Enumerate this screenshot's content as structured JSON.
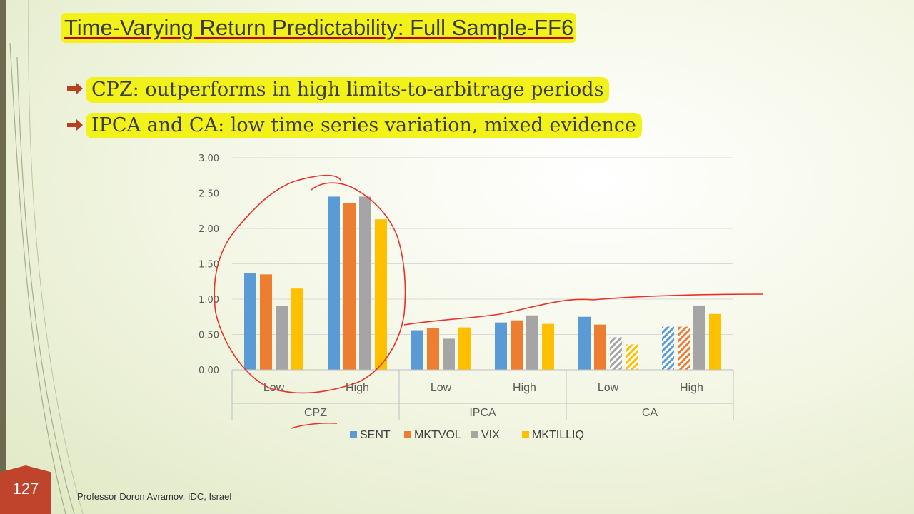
{
  "slide": {
    "title": "Time-Varying Return Predictability: Full Sample-FF6",
    "bullets": [
      "CPZ: outperforms in high limits-to-arbitrage periods",
      "IPCA and CA: low time series variation, mixed evidence"
    ],
    "page_number": "127",
    "footer": "Professor Doron Avramov, IDC, Israel"
  },
  "colors": {
    "SENT": "#5b9bd5",
    "MKTVOL": "#ed7d31",
    "VIX": "#a5a5a5",
    "MKTILLIQ": "#ffc000",
    "annotation": "#e8332a"
  },
  "chart_data": {
    "type": "bar",
    "groups": [
      {
        "name": "CPZ",
        "categories": [
          "Low",
          "High"
        ]
      },
      {
        "name": "IPCA",
        "categories": [
          "Low",
          "High"
        ]
      },
      {
        "name": "CA",
        "categories": [
          "Low",
          "High"
        ]
      }
    ],
    "categories": [
      "Low",
      "High",
      "Low",
      "High",
      "Low",
      "High"
    ],
    "series": [
      {
        "name": "SENT",
        "values": [
          1.37,
          2.45,
          0.56,
          0.67,
          0.75,
          0.61
        ]
      },
      {
        "name": "MKTVOL",
        "values": [
          1.35,
          2.36,
          0.59,
          0.7,
          0.64,
          0.61
        ]
      },
      {
        "name": "VIX",
        "values": [
          0.9,
          2.45,
          0.44,
          0.77,
          0.46,
          0.91
        ]
      },
      {
        "name": "MKTILLIQ",
        "values": [
          1.15,
          2.13,
          0.6,
          0.65,
          0.36,
          0.79
        ]
      }
    ],
    "hatched": [
      [
        false,
        false,
        false,
        false,
        false,
        true
      ],
      [
        false,
        false,
        false,
        false,
        false,
        true
      ],
      [
        false,
        false,
        false,
        false,
        true,
        false
      ],
      [
        false,
        false,
        false,
        false,
        true,
        false
      ]
    ],
    "ylim": [
      0,
      3
    ],
    "yticks": [
      "0.00",
      "0.50",
      "1.00",
      "1.50",
      "2.00",
      "2.50",
      "3.00"
    ],
    "grid": true,
    "legend": "bottom"
  }
}
